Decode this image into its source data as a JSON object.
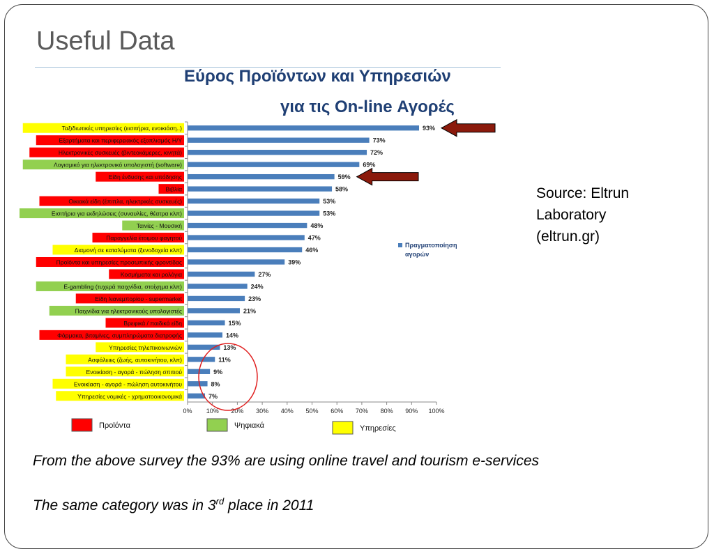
{
  "slide": {
    "title": "Useful Data",
    "source": "Source: Eltrun\nLaboratory\n(eltrun.gr)",
    "note1": "From the above survey the 93% are using online travel and tourism e-services",
    "note2_pre": "The same category was in 3",
    "note2_sup": "rd",
    "note2_post": " place in 2011"
  },
  "chart_data": {
    "type": "bar",
    "orientation": "horizontal",
    "title_line1": "Εύρος Προϊόντων και Υπηρεσιών",
    "title_line2": "για τις On-line Αγορές",
    "legend_series": "Πραγματοποίηση αγορών",
    "legend_placement": "right",
    "xlim": [
      0,
      100
    ],
    "xticks": [
      "0%",
      "10%",
      "20%",
      "30%",
      "40%",
      "50%",
      "60%",
      "70%",
      "80%",
      "90%",
      "100%"
    ],
    "bar_color": "#4a7ebb",
    "category_colors": {
      "product": "#ff0000",
      "digital": "#92d050",
      "service": "#ffff00"
    },
    "category_legend": [
      {
        "key": "product",
        "label": "Προϊόντα"
      },
      {
        "key": "digital",
        "label": "Ψηφιακά"
      },
      {
        "key": "service",
        "label": "Υπηρεσίες"
      }
    ],
    "arrows_at": [
      "Ταξιδιωτικές υπηρεσίες (εισιτήρια, ενοικιάση..)",
      "Είδη ένδυσης και υπόδησης"
    ],
    "circled_group": "bottom-five",
    "items": [
      {
        "label": "Ταξιδιωτικές υπηρεσίες (εισιτήρια, ενοικιάση..)",
        "value": 93,
        "value_label": "93%",
        "group": "service"
      },
      {
        "label": "Εξαρτήματα και περιφερειακός εξοπλισμός Η/Υ",
        "value": 73,
        "value_label": "73%",
        "group": "product"
      },
      {
        "label": "Ηλεκτρονικές συσκευές (βιντεοκάμερες, κινητά)",
        "value": 72,
        "value_label": "72%",
        "group": "product"
      },
      {
        "label": "Λογισμικό για ηλεκτρονικό υπολογιστή (software)",
        "value": 69,
        "value_label": "69%",
        "group": "digital"
      },
      {
        "label": "Είδη ένδυσης και υπόδησης",
        "value": 59,
        "value_label": "59%",
        "group": "product"
      },
      {
        "label": "Βιβλία",
        "value": 58,
        "value_label": "58%",
        "group": "product"
      },
      {
        "label": "Οικιακά είδη (έπιπλα, ηλεκτρικές συσκευές)",
        "value": 53,
        "value_label": "53%",
        "group": "product"
      },
      {
        "label": "Εισιτήρια για εκδηλώσεις (συναυλίες, θέατρα κλπ)",
        "value": 53,
        "value_label": "53%",
        "group": "digital"
      },
      {
        "label": "Ταινίες - Μουσική",
        "value": 48,
        "value_label": "48%",
        "group": "digital"
      },
      {
        "label": "Παραγγελία έτοιμου φαγητού",
        "value": 47,
        "value_label": "47%",
        "group": "product"
      },
      {
        "label": "Διαμονή σε καταλύματα (ξενοδοχεία κλπ)",
        "value": 46,
        "value_label": "46%",
        "group": "service"
      },
      {
        "label": "Προϊόντα και υπηρεσίες προσωπικής φροντίδας",
        "value": 39,
        "value_label": "39%",
        "group": "product"
      },
      {
        "label": "Κοσμήματα και ρολόγια",
        "value": 27,
        "value_label": "27%",
        "group": "product"
      },
      {
        "label": "E-gambling (τυχερά παιχνίδια, στοίχημα κλπ)",
        "value": 24,
        "value_label": "24%",
        "group": "digital"
      },
      {
        "label": "Είδη λιανεμπορίου - supermarket",
        "value": 23,
        "value_label": "23%",
        "group": "product"
      },
      {
        "label": "Παιχνίδια για ηλεκτρονικούς υπολογιστές",
        "value": 21,
        "value_label": "21%",
        "group": "digital"
      },
      {
        "label": "Βρεφικά / παιδικά είδη",
        "value": 15,
        "value_label": "15%",
        "group": "product"
      },
      {
        "label": "Φάρμακα, βιταμίνες, συμπληρώματα διατροφής",
        "value": 14,
        "value_label": "14%",
        "group": "product"
      },
      {
        "label": "Υπηρεσίες τηλεπικοινωνιών",
        "value": 13,
        "value_label": "13%",
        "group": "service"
      },
      {
        "label": "Ασφάλειες (ζωής, αυτοκινήτου, κλπ)",
        "value": 11,
        "value_label": "11%",
        "group": "service"
      },
      {
        "label": "Ενοικίαση - αγορά - πώληση σπιτιού",
        "value": 9,
        "value_label": "9%",
        "group": "service"
      },
      {
        "label": "Ενοικίαση - αγορά - πώληση αυτοκινήτου",
        "value": 8,
        "value_label": "8%",
        "group": "service"
      },
      {
        "label": "Υπηρεσίες νομικές - χρηματοοικονομικά",
        "value": 7,
        "value_label": "7%",
        "group": "service"
      }
    ]
  }
}
